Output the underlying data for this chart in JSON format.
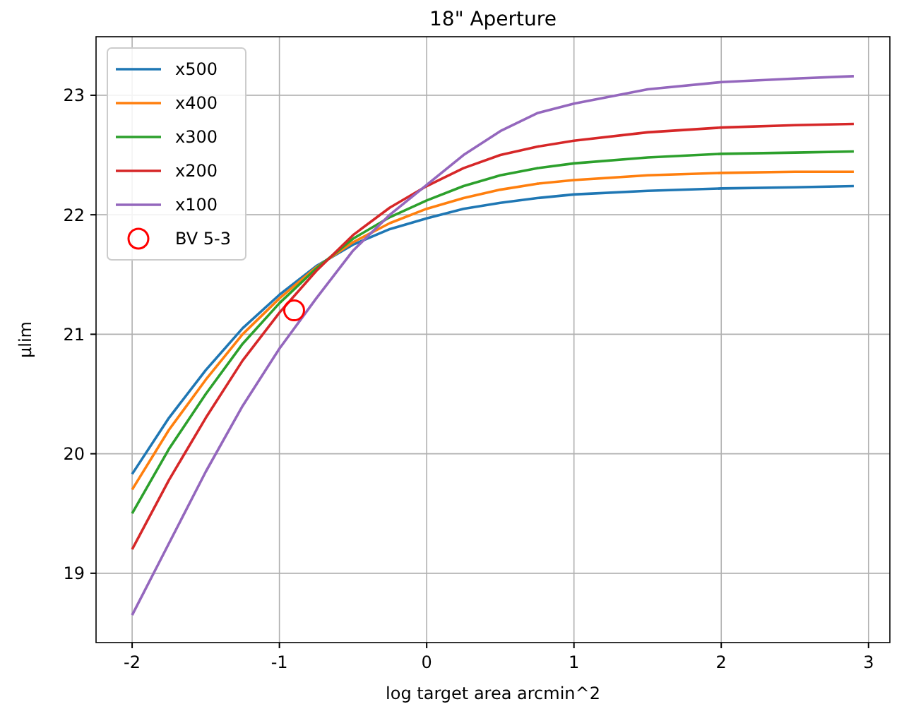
{
  "chart_data": {
    "type": "line",
    "title": "18\" Aperture",
    "xlabel": "log target area arcmin^2",
    "ylabel": "μlim",
    "x": [
      -2,
      -1.75,
      -1.5,
      -1.25,
      -1,
      -0.75,
      -0.5,
      -0.25,
      0,
      0.25,
      0.5,
      0.75,
      1,
      1.5,
      2,
      2.5,
      2.9
    ],
    "series": [
      {
        "name": "x500",
        "color": "#1f77b4",
        "values": [
          19.83,
          20.3,
          20.7,
          21.05,
          21.33,
          21.57,
          21.75,
          21.88,
          21.97,
          22.05,
          22.1,
          22.14,
          22.17,
          22.2,
          22.22,
          22.23,
          22.24
        ]
      },
      {
        "name": "x400",
        "color": "#ff7f0e",
        "values": [
          19.7,
          20.2,
          20.62,
          21.0,
          21.3,
          21.56,
          21.77,
          21.93,
          22.05,
          22.14,
          22.21,
          22.26,
          22.29,
          22.33,
          22.35,
          22.36,
          22.36
        ]
      },
      {
        "name": "x300",
        "color": "#2ca02c",
        "values": [
          19.5,
          20.04,
          20.5,
          20.92,
          21.26,
          21.55,
          21.8,
          21.98,
          22.12,
          22.24,
          22.33,
          22.39,
          22.43,
          22.48,
          22.51,
          22.52,
          22.53
        ]
      },
      {
        "name": "x200",
        "color": "#d62728",
        "values": [
          19.2,
          19.78,
          20.3,
          20.78,
          21.18,
          21.53,
          21.83,
          22.06,
          22.24,
          22.39,
          22.5,
          22.57,
          22.62,
          22.69,
          22.73,
          22.75,
          22.76
        ]
      },
      {
        "name": "x100",
        "color": "#9467bd",
        "values": [
          18.65,
          19.25,
          19.85,
          20.4,
          20.88,
          21.3,
          21.7,
          22.0,
          22.25,
          22.5,
          22.7,
          22.85,
          22.93,
          23.05,
          23.11,
          23.14,
          23.16
        ]
      },
      {
        "name": "BV 5-3",
        "type": "scatter",
        "marker": "circle",
        "color": "#ff0000",
        "x": [
          -0.9
        ],
        "values": [
          21.2
        ]
      }
    ],
    "xlim": [
      -2.245,
      3.145
    ],
    "ylim": [
      18.42,
      23.49
    ],
    "xticks": [
      -2,
      -1,
      0,
      1,
      2,
      3
    ],
    "yticks": [
      19,
      20,
      21,
      22,
      23
    ],
    "grid": true,
    "legend": "top left"
  }
}
